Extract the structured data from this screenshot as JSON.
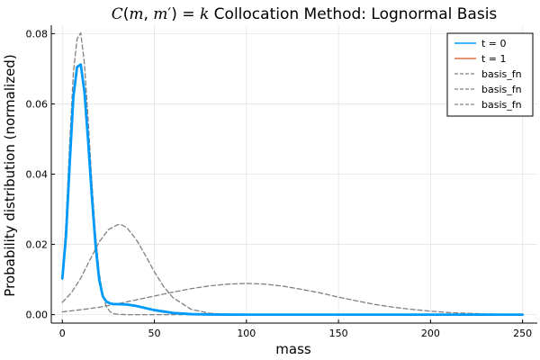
{
  "chart_data": {
    "type": "line",
    "title": "C(m, m′) = k Collocation Method: Lognormal Basis",
    "xlabel": "mass",
    "ylabel": "Probability distribution (normalized)",
    "xlim": [
      -6,
      258
    ],
    "ylim": [
      -0.0024,
      0.0824
    ],
    "x_ticks": [
      0,
      50,
      100,
      150,
      200,
      250
    ],
    "x_tick_labels": [
      "0",
      "50",
      "100",
      "150",
      "200",
      "250"
    ],
    "y_ticks": [
      0.0,
      0.02,
      0.04,
      0.06,
      0.08
    ],
    "y_tick_labels": [
      "0.00",
      "0.02",
      "0.04",
      "0.06",
      "0.08"
    ],
    "grid": true,
    "legend_position": "top-right",
    "series": [
      {
        "name": "t = 0",
        "style": "solid",
        "color": "#009AFA",
        "x": [
          0,
          2,
          4,
          6,
          8,
          10,
          12,
          14,
          16,
          18,
          20,
          22,
          24,
          26,
          28,
          30,
          35,
          40,
          45,
          50,
          60,
          70,
          80,
          100,
          150,
          200,
          250
        ],
        "y": [
          0.0103,
          0.0225,
          0.043,
          0.062,
          0.0705,
          0.0712,
          0.0635,
          0.0495,
          0.034,
          0.02,
          0.01,
          0.0052,
          0.0037,
          0.0032,
          0.003,
          0.003,
          0.0029,
          0.0025,
          0.0019,
          0.0013,
          0.0005,
          0.00015,
          5e-05,
          0.0,
          0.0,
          0.0,
          0.0
        ]
      },
      {
        "name": "t = 1",
        "style": "solid",
        "color": "#E26F46",
        "x": [],
        "y": []
      },
      {
        "name": "basis_fn",
        "style": "dashed",
        "color": "#808080",
        "x": [
          0,
          2,
          4,
          6,
          8,
          10,
          12,
          14,
          16,
          18,
          20,
          22,
          24,
          26,
          28,
          30,
          35,
          40,
          60,
          100,
          150,
          200,
          250
        ],
        "y": [
          0.0103,
          0.0265,
          0.049,
          0.069,
          0.0785,
          0.0802,
          0.0715,
          0.0555,
          0.038,
          0.023,
          0.012,
          0.0055,
          0.0022,
          0.0008,
          0.0003,
          0.0001,
          0.0,
          0.0,
          0.0,
          0.0,
          0.0,
          0.0,
          0.0
        ]
      },
      {
        "name": "basis_fn",
        "style": "dashed",
        "color": "#808080",
        "x": [
          0,
          5,
          10,
          15,
          20,
          25,
          30,
          32,
          35,
          40,
          45,
          50,
          55,
          60,
          70,
          80,
          90,
          100,
          120,
          150,
          200,
          250
        ],
        "y": [
          0.0035,
          0.0063,
          0.0104,
          0.0156,
          0.0207,
          0.0242,
          0.0256,
          0.0256,
          0.0248,
          0.0215,
          0.017,
          0.0122,
          0.008,
          0.0049,
          0.0015,
          0.0004,
          0.0001,
          0.0,
          0.0,
          0.0,
          0.0,
          0.0
        ]
      },
      {
        "name": "basis_fn",
        "style": "dashed",
        "color": "#808080",
        "x": [
          0,
          10,
          20,
          30,
          40,
          50,
          60,
          70,
          80,
          90,
          100,
          110,
          120,
          130,
          140,
          150,
          160,
          170,
          180,
          190,
          200,
          210,
          220,
          230,
          240,
          250
        ],
        "y": [
          0.0008,
          0.0014,
          0.0021,
          0.0031,
          0.0042,
          0.0053,
          0.0064,
          0.0074,
          0.0082,
          0.0087,
          0.0089,
          0.0087,
          0.0081,
          0.0072,
          0.0062,
          0.005,
          0.0039,
          0.0029,
          0.0021,
          0.0015,
          0.001,
          0.0006,
          0.0004,
          0.0002,
          0.0001,
          0.0001
        ]
      }
    ]
  }
}
